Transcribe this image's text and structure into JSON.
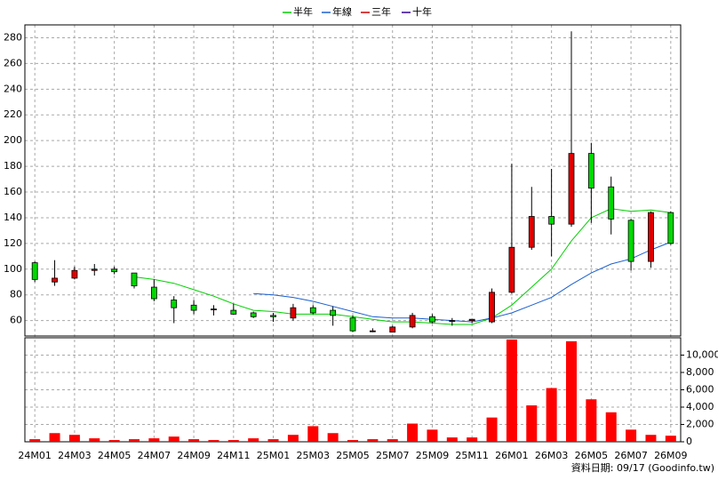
{
  "chart_data": {
    "type": "candlestick",
    "categories": [
      "24M01",
      null,
      "24M03",
      null,
      "24M05",
      null,
      "24M07",
      null,
      "24M09",
      null,
      "24M11",
      null,
      "25M01",
      null,
      "25M03",
      null,
      "25M05",
      null,
      "25M07",
      null,
      "25M09",
      null,
      "25M11",
      null,
      "26M01",
      null,
      "26M03",
      null,
      "26M05",
      null,
      "26M07",
      null,
      "26M09"
    ],
    "open": [
      105,
      90,
      93,
      99,
      100,
      97,
      86,
      76,
      72,
      69,
      68,
      66,
      64,
      62,
      70,
      68,
      62,
      52,
      51,
      55,
      63,
      60,
      60,
      59,
      82,
      117,
      141,
      135,
      190,
      164,
      138,
      106,
      144
    ],
    "high": [
      106,
      107,
      102,
      104,
      102,
      97,
      92,
      79,
      76,
      72,
      73,
      67,
      66,
      73,
      72,
      71,
      64,
      54,
      56,
      66,
      65,
      62,
      61,
      85,
      182,
      164,
      178,
      285,
      198,
      172,
      139,
      145,
      145
    ],
    "low": [
      90,
      87,
      92,
      95,
      96,
      85,
      75,
      58,
      65,
      64,
      65,
      62,
      59,
      60,
      65,
      56,
      51,
      51,
      51,
      54,
      58,
      56,
      58,
      58,
      81,
      115,
      110,
      133,
      136,
      127,
      99,
      101,
      119
    ],
    "close": [
      92,
      93,
      99,
      100,
      98,
      87,
      77,
      70,
      68,
      69,
      65,
      63,
      63,
      70,
      66,
      64,
      52,
      52,
      55,
      64,
      59,
      60,
      61,
      82,
      117,
      141,
      135,
      190,
      163,
      139,
      106,
      144,
      120
    ],
    "up_color": "#e00000",
    "down_color": "#00d800",
    "ylim": [
      48,
      290
    ],
    "yticks": [
      60,
      80,
      100,
      120,
      140,
      160,
      180,
      200,
      220,
      240,
      260,
      280
    ],
    "grid": true,
    "series": [
      {
        "name": "半年",
        "color": "#00d000",
        "values": [
          null,
          null,
          null,
          null,
          null,
          94,
          92,
          89,
          84,
          79,
          73,
          68,
          67,
          65,
          65,
          65,
          63,
          61,
          59,
          59,
          58,
          57,
          57,
          62,
          72,
          86,
          100,
          122,
          140,
          147,
          145,
          146,
          144
        ]
      },
      {
        "name": "年線",
        "color": "#1a5fd0",
        "values": [
          null,
          null,
          null,
          null,
          null,
          null,
          null,
          null,
          null,
          null,
          null,
          81,
          80,
          78,
          75,
          71,
          67,
          63,
          62,
          62,
          61,
          60,
          59,
          62,
          66,
          72,
          78,
          88,
          97,
          104,
          108,
          115,
          121
        ]
      },
      {
        "name": "三年",
        "color": "#cc0000",
        "values": [
          null,
          null,
          null,
          null,
          null,
          null,
          null,
          null,
          null,
          null,
          null,
          null,
          null,
          null,
          null,
          null,
          null,
          null,
          null,
          null,
          null,
          null,
          null,
          null,
          null,
          null,
          null,
          null,
          null,
          null,
          null,
          null,
          null
        ]
      },
      {
        "name": "十年",
        "color": "#330099",
        "values": [
          null,
          null,
          null,
          null,
          null,
          null,
          null,
          null,
          null,
          null,
          null,
          null,
          null,
          null,
          null,
          null,
          null,
          null,
          null,
          null,
          null,
          null,
          null,
          null,
          null,
          null,
          null,
          null,
          null,
          null,
          null,
          null,
          null
        ]
      }
    ],
    "volume": {
      "color": "#ff0000",
      "values": [
        300,
        1000,
        800,
        400,
        200,
        300,
        400,
        600,
        300,
        200,
        200,
        400,
        300,
        800,
        1800,
        1000,
        200,
        300,
        300,
        2100,
        1400,
        500,
        500,
        2800,
        11800,
        4200,
        6200,
        11600,
        4900,
        3400,
        1400,
        800,
        700
      ],
      "ylim": [
        0,
        12000
      ],
      "yticks": [
        0,
        {
          "value": 2000,
          "label": "2,000"
        },
        {
          "value": 4000,
          "label": "4,000"
        },
        {
          "value": 6000,
          "label": "6,000"
        },
        {
          "value": 8000,
          "label": "8,000"
        },
        {
          "value": 10000,
          "label": "10,000"
        }
      ]
    },
    "footer": "資料日期: 09/17 (Goodinfo.tw)"
  }
}
